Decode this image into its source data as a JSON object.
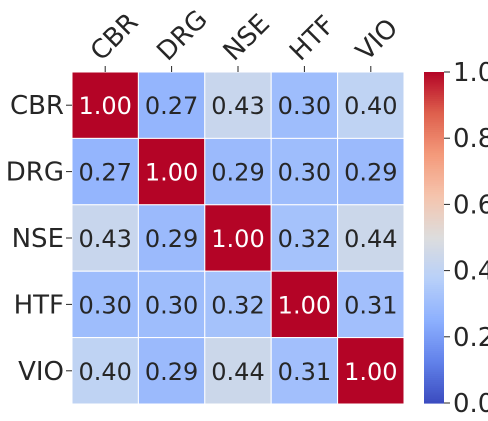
{
  "chart_data": {
    "type": "heatmap",
    "x_labels": [
      "CBR",
      "DRG",
      "NSE",
      "HTF",
      "VIO"
    ],
    "y_labels": [
      "CBR",
      "DRG",
      "NSE",
      "HTF",
      "VIO"
    ],
    "matrix": [
      [
        1.0,
        0.27,
        0.43,
        0.3,
        0.4
      ],
      [
        0.27,
        1.0,
        0.29,
        0.3,
        0.29
      ],
      [
        0.43,
        0.29,
        1.0,
        0.32,
        0.44
      ],
      [
        0.3,
        0.3,
        0.32,
        1.0,
        0.31
      ],
      [
        0.4,
        0.29,
        0.44,
        0.31,
        1.0
      ]
    ],
    "value_format": "0.00",
    "colormap": "coolwarm",
    "vmin": 0.0,
    "vmax": 1.0,
    "colorbar": {
      "ticks": [
        0.0,
        0.2,
        0.4,
        0.6,
        0.8,
        1.0
      ],
      "tick_labels": [
        "0.0",
        "0.2",
        "0.4",
        "0.6",
        "0.8",
        "1.0"
      ]
    },
    "grid_lines": true,
    "grid_line_color": "#ffffff",
    "x_label_rotation_deg": 45
  }
}
